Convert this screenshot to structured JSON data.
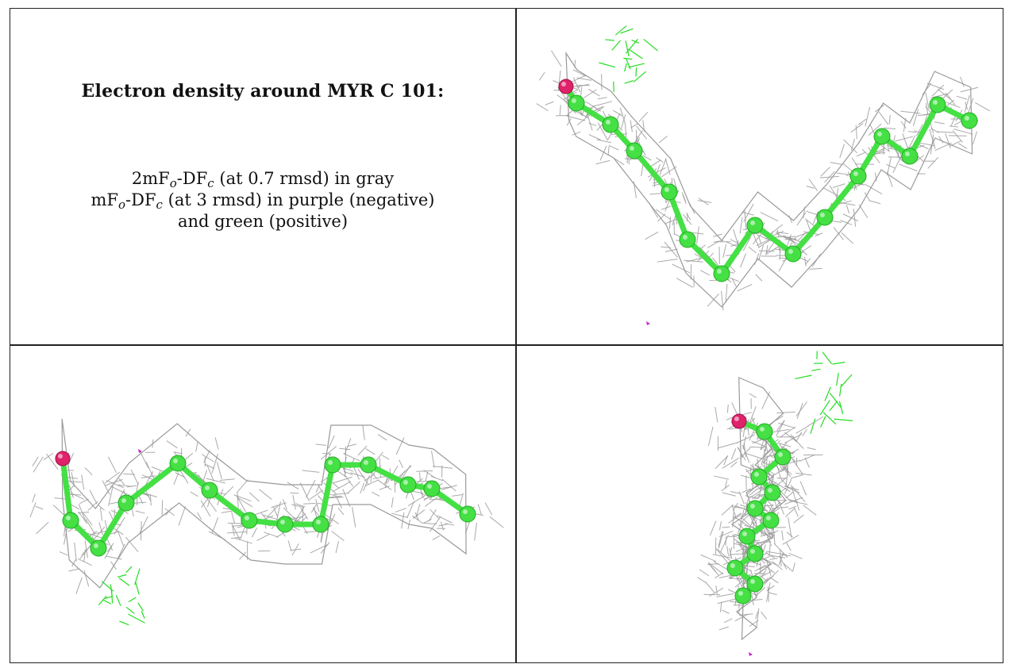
{
  "panel": {
    "heading": "Electron density around MYR C 101:",
    "legend": {
      "line1": {
        "pre": "2mF",
        "sub1": "o",
        "mid": "-DF",
        "sub2": "c",
        "post": " (at 0.7 rmsd) in gray"
      },
      "line2": {
        "pre": "mF",
        "sub1": "o",
        "mid": "-DF",
        "sub2": "c",
        "post": " (at 3 rmsd) in purple (negative)"
      },
      "line3": "and green (positive)"
    }
  },
  "views": [
    "view-top-right",
    "view-bottom-left",
    "view-bottom-right"
  ],
  "colors": {
    "mesh_2fofc": "#9a9a9a",
    "mesh_fofc_positive": "#22dd22",
    "mesh_fofc_negative": "#cc22cc",
    "carbon_atom": "#44e044",
    "oxygen_atom": "#e0226a",
    "grid_line": "#222222"
  }
}
